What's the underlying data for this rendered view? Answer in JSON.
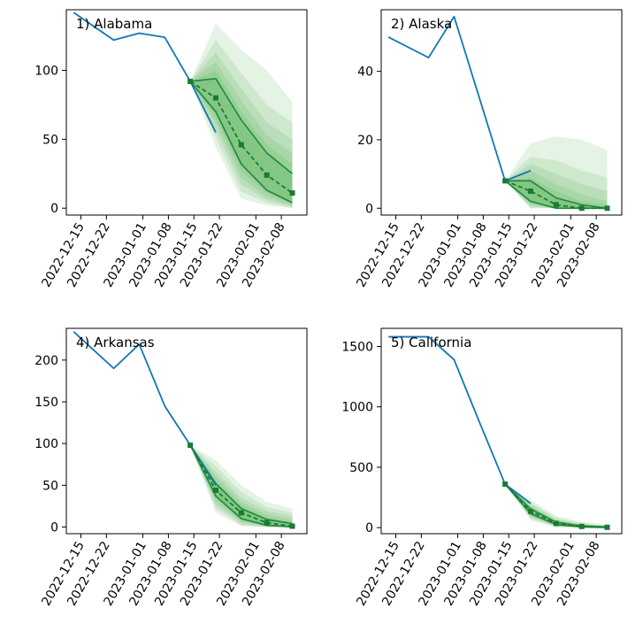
{
  "chart_data": [
    {
      "type": "line",
      "title": "1) Alabama",
      "ylim": [
        -5,
        144
      ],
      "yticks": [
        0,
        50,
        100
      ],
      "xlim": [
        "2022-12-11",
        "2023-02-15"
      ],
      "xticks": [
        "2022-12-15",
        "2022-12-22",
        "2023-01-01",
        "2023-01-08",
        "2023-01-15",
        "2023-01-22",
        "2023-02-01",
        "2023-02-08"
      ],
      "observed": {
        "x": [
          "2022-12-13",
          "2022-12-24",
          "2022-12-31",
          "2023-01-07",
          "2023-01-14",
          "2023-01-21"
        ],
        "y": [
          142,
          122,
          127,
          124,
          92,
          55
        ]
      },
      "observed_tail": {
        "x": [
          "2023-01-14",
          "2023-01-21"
        ],
        "y": [
          92,
          55
        ]
      },
      "forecast_x": [
        "2023-01-14",
        "2023-01-21",
        "2023-01-28",
        "2023-02-04",
        "2023-02-11"
      ],
      "median": [
        92,
        80,
        46,
        24,
        11
      ],
      "inner_band": {
        "lower": [
          92,
          70,
          32,
          13,
          4
        ],
        "upper": [
          92,
          94,
          64,
          40,
          25
        ]
      },
      "outer_bands": [
        {
          "lower": [
            92,
            66,
            27,
            11,
            3
          ],
          "upper": [
            92,
            100,
            70,
            46,
            32
          ]
        },
        {
          "lower": [
            92,
            62,
            22,
            8,
            2
          ],
          "upper": [
            92,
            106,
            78,
            53,
            40
          ]
        },
        {
          "lower": [
            92,
            57,
            17,
            6,
            1
          ],
          "upper": [
            92,
            113,
            87,
            62,
            50
          ]
        },
        {
          "lower": [
            92,
            51,
            12,
            4,
            0
          ],
          "upper": [
            92,
            122,
            98,
            75,
            62
          ]
        },
        {
          "lower": [
            92,
            44,
            7,
            2,
            0
          ],
          "upper": [
            92,
            134,
            115,
            100,
            77
          ]
        }
      ]
    },
    {
      "type": "line",
      "title": "2) Alaska",
      "ylim": [
        -2,
        58
      ],
      "yticks": [
        0,
        20,
        40
      ],
      "xlim": [
        "2022-12-11",
        "2023-02-15"
      ],
      "xticks": [
        "2022-12-15",
        "2022-12-22",
        "2023-01-01",
        "2023-01-08",
        "2023-01-15",
        "2023-01-22",
        "2023-02-01",
        "2023-02-08"
      ],
      "observed": {
        "x": [
          "2022-12-13",
          "2022-12-24",
          "2022-12-31",
          "2023-01-07",
          "2023-01-14",
          "2023-01-21"
        ],
        "y": [
          50,
          44,
          56,
          32,
          8,
          11
        ]
      },
      "observed_tail": {
        "x": [
          "2023-01-14",
          "2023-01-21"
        ],
        "y": [
          8,
          11
        ]
      },
      "forecast_x": [
        "2023-01-14",
        "2023-01-21",
        "2023-01-28",
        "2023-02-04",
        "2023-02-11"
      ],
      "median": [
        8,
        5,
        1,
        0,
        0
      ],
      "inner_band": {
        "lower": [
          8,
          2,
          0,
          0,
          0
        ],
        "upper": [
          8,
          8,
          3,
          1,
          0
        ]
      },
      "outer_bands": [
        {
          "lower": [
            8,
            1.5,
            0,
            0,
            0
          ],
          "upper": [
            8,
            9,
            5,
            2,
            1
          ]
        },
        {
          "lower": [
            8,
            1,
            0,
            0,
            0
          ],
          "upper": [
            8,
            11,
            7,
            4,
            2
          ]
        },
        {
          "lower": [
            8,
            0.5,
            0,
            0,
            0
          ],
          "upper": [
            8,
            13,
            10,
            7,
            5
          ]
        },
        {
          "lower": [
            8,
            0,
            0,
            0,
            0
          ],
          "upper": [
            8,
            15,
            14,
            11,
            9
          ]
        },
        {
          "lower": [
            8,
            0,
            0,
            0,
            0
          ],
          "upper": [
            8,
            19,
            21,
            20,
            17
          ]
        }
      ]
    },
    {
      "type": "line",
      "title": "4) Arkansas",
      "ylim": [
        -8,
        238
      ],
      "yticks": [
        0,
        50,
        100,
        150,
        200
      ],
      "xlim": [
        "2022-12-11",
        "2023-02-15"
      ],
      "xticks": [
        "2022-12-15",
        "2022-12-22",
        "2023-01-01",
        "2023-01-08",
        "2023-01-15",
        "2023-01-22",
        "2023-02-01",
        "2023-02-08"
      ],
      "observed": {
        "x": [
          "2022-12-13",
          "2022-12-24",
          "2022-12-31",
          "2023-01-07",
          "2023-01-14",
          "2023-01-21"
        ],
        "y": [
          234,
          190,
          219,
          145,
          98,
          50
        ]
      },
      "observed_tail": {
        "x": [
          "2023-01-14",
          "2023-01-21"
        ],
        "y": [
          98,
          50
        ]
      },
      "forecast_x": [
        "2023-01-14",
        "2023-01-21",
        "2023-01-28",
        "2023-02-04",
        "2023-02-11"
      ],
      "median": [
        98,
        44,
        17,
        5,
        1
      ],
      "inner_band": {
        "lower": [
          98,
          37,
          10,
          2,
          0
        ],
        "upper": [
          98,
          52,
          22,
          9,
          4
        ]
      },
      "outer_bands": [
        {
          "lower": [
            98,
            34,
            8,
            1,
            0
          ],
          "upper": [
            98,
            56,
            26,
            12,
            6
          ]
        },
        {
          "lower": [
            98,
            30,
            6,
            1,
            0
          ],
          "upper": [
            98,
            61,
            30,
            15,
            9
          ]
        },
        {
          "lower": [
            98,
            26,
            4,
            0,
            0
          ],
          "upper": [
            98,
            66,
            35,
            19,
            13
          ]
        },
        {
          "lower": [
            98,
            22,
            2,
            0,
            0
          ],
          "upper": [
            98,
            73,
            42,
            24,
            17
          ]
        },
        {
          "lower": [
            98,
            17,
            1,
            0,
            0
          ],
          "upper": [
            98,
            80,
            50,
            30,
            22
          ]
        }
      ]
    },
    {
      "type": "line",
      "title": "5) California",
      "ylim": [
        -50,
        1650
      ],
      "yticks": [
        0,
        500,
        1000,
        1500
      ],
      "xlim": [
        "2022-12-11",
        "2023-02-15"
      ],
      "xticks": [
        "2022-12-15",
        "2022-12-22",
        "2023-01-01",
        "2023-01-08",
        "2023-01-15",
        "2023-01-22",
        "2023-02-01",
        "2023-02-08"
      ],
      "observed": {
        "x": [
          "2022-12-13",
          "2022-12-24",
          "2022-12-31",
          "2023-01-07",
          "2023-01-14",
          "2023-01-21"
        ],
        "y": [
          1580,
          1580,
          1390,
          870,
          360,
          200
        ]
      },
      "observed_tail": {
        "x": [
          "2023-01-14",
          "2023-01-21"
        ],
        "y": [
          360,
          200
        ]
      },
      "forecast_x": [
        "2023-01-14",
        "2023-01-21",
        "2023-01-28",
        "2023-02-04",
        "2023-02-11"
      ],
      "median": [
        360,
        135,
        35,
        10,
        3
      ],
      "inner_band": {
        "lower": [
          360,
          115,
          25,
          5,
          1
        ],
        "upper": [
          360,
          155,
          45,
          15,
          6
        ]
      },
      "outer_bands": [
        {
          "lower": [
            360,
            105,
            20,
            4,
            0
          ],
          "upper": [
            360,
            165,
            52,
            19,
            8
          ]
        },
        {
          "lower": [
            360,
            95,
            15,
            3,
            0
          ],
          "upper": [
            360,
            178,
            60,
            24,
            11
          ]
        },
        {
          "lower": [
            360,
            85,
            10,
            2,
            0
          ],
          "upper": [
            360,
            192,
            70,
            30,
            14
          ]
        },
        {
          "lower": [
            360,
            75,
            6,
            1,
            0
          ],
          "upper": [
            360,
            210,
            82,
            38,
            19
          ]
        },
        {
          "lower": [
            360,
            60,
            3,
            0,
            0
          ],
          "upper": [
            360,
            232,
            98,
            48,
            26
          ]
        }
      ]
    }
  ],
  "colors": {
    "observed": "#1077b4",
    "forecast": "#1c8a3a",
    "median": "#1c7a30",
    "band": "#2ca02c",
    "axis": "#000000"
  }
}
